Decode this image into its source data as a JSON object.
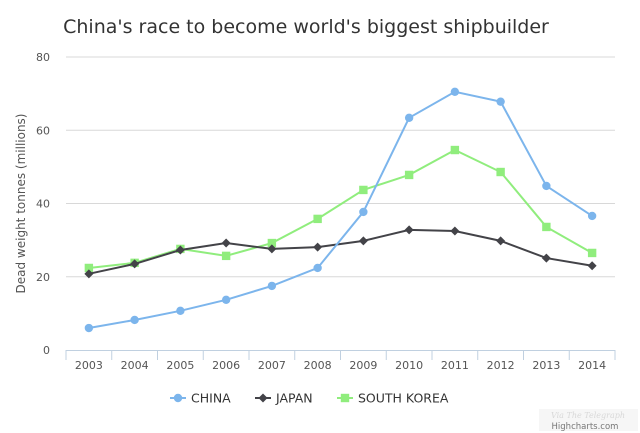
{
  "chart_data": {
    "type": "line",
    "title": "China's race to become world's biggest shipbuilder",
    "xlabel": "",
    "ylabel": "Dead weight tonnes (millions)",
    "ylim": [
      0,
      80
    ],
    "yticks": [
      0,
      20,
      40,
      60,
      80
    ],
    "grid": true,
    "legend_position": "bottom-center",
    "categories": [
      "2003",
      "2004",
      "2005",
      "2006",
      "2007",
      "2008",
      "2009",
      "2010",
      "2011",
      "2012",
      "2013",
      "2014"
    ],
    "series": [
      {
        "name": "CHINA",
        "color": "#7cb5ec",
        "marker": "circle",
        "values": [
          6.0,
          8.2,
          10.7,
          13.7,
          17.5,
          22.4,
          37.7,
          63.4,
          70.5,
          67.8,
          44.8,
          36.6
        ]
      },
      {
        "name": "JAPAN",
        "color": "#434348",
        "marker": "diamond",
        "values": [
          20.8,
          23.5,
          27.3,
          29.2,
          27.6,
          28.1,
          29.8,
          32.8,
          32.5,
          29.8,
          25.1,
          23.0
        ]
      },
      {
        "name": "SOUTH KOREA",
        "color": "#90ed7d",
        "marker": "square",
        "values": [
          22.4,
          23.8,
          27.6,
          25.7,
          29.2,
          35.8,
          43.7,
          47.8,
          54.6,
          48.6,
          33.6,
          26.5
        ]
      }
    ]
  },
  "credits": {
    "source": "Via The Telegraph",
    "provider": "Highcharts.com"
  }
}
